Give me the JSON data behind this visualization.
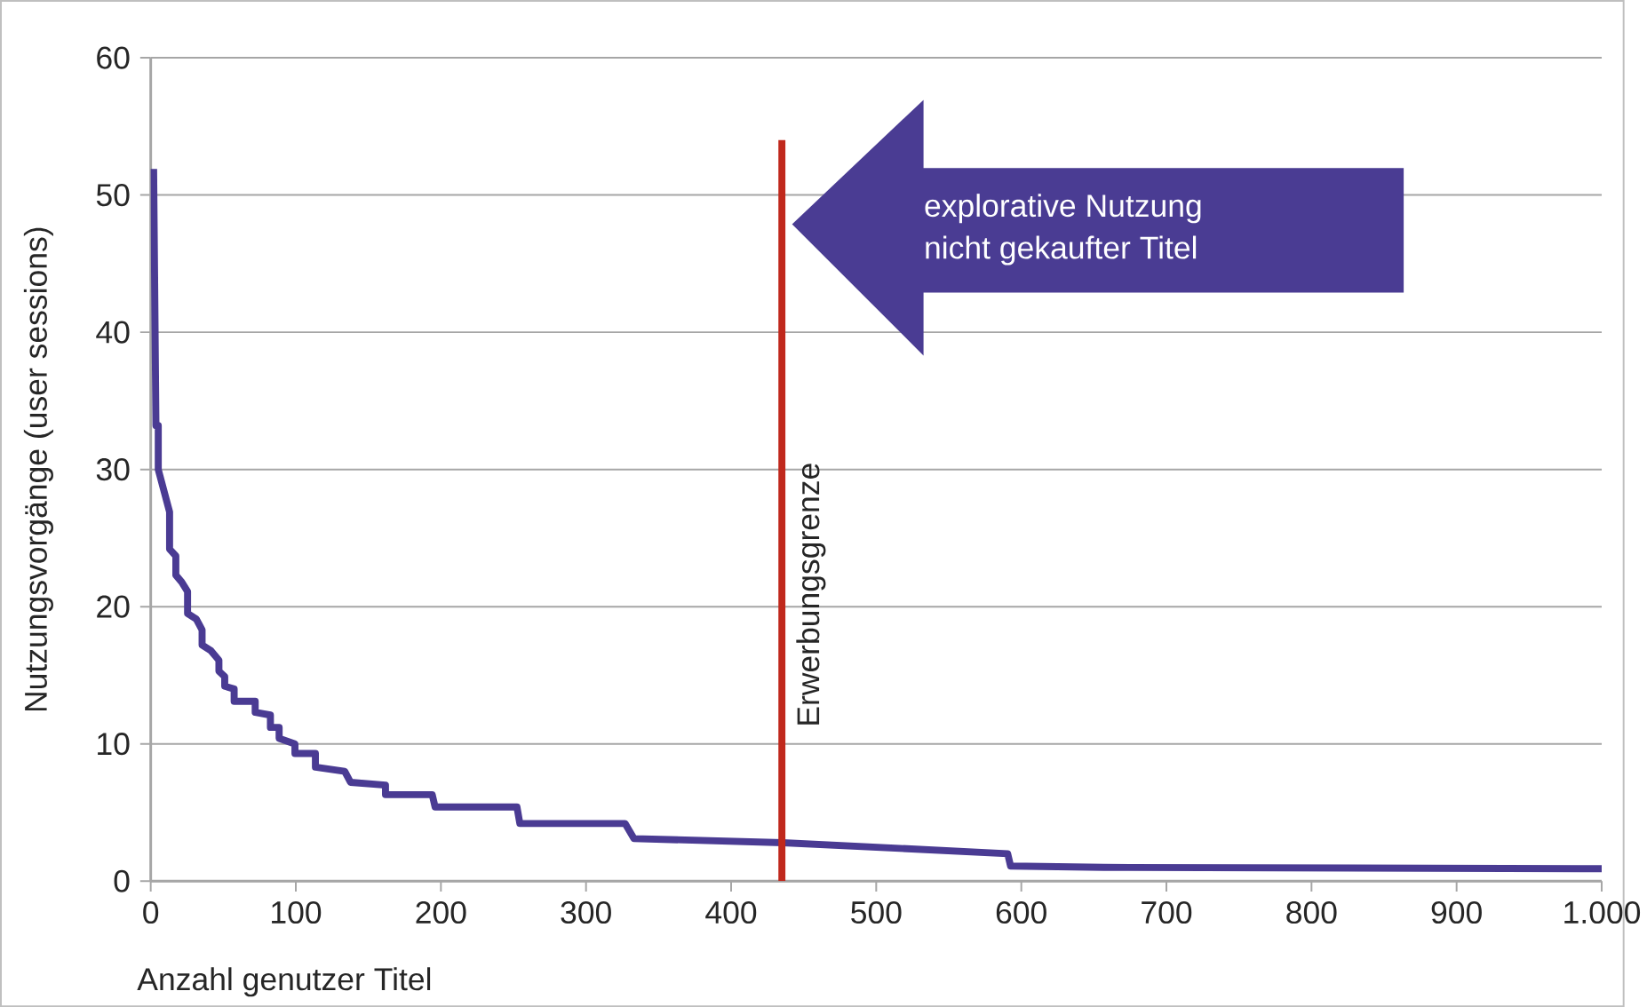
{
  "chart_data": {
    "type": "line",
    "xlabel": "Anzahl genutzer Titel",
    "ylabel": "Nutzungsvorgänge (user sessions)",
    "xlim": [
      0,
      1000
    ],
    "ylim": [
      0,
      60
    ],
    "xticks": [
      0,
      100,
      200,
      300,
      400,
      500,
      600,
      700,
      800,
      900,
      {
        "value": 1000,
        "label": "1.000"
      }
    ],
    "yticks": [
      0,
      10,
      20,
      30,
      40,
      50,
      60
    ],
    "grid": "y",
    "marker": "none",
    "line_style": "solid",
    "series": [
      {
        "color": "#4a3b93",
        "x": [
          2,
          3.6,
          5.2,
          5.2,
          13,
          13,
          17.3,
          17.3,
          21.3,
          25.4,
          25.4,
          31.4,
          35.4,
          35.4,
          41.4,
          47,
          47,
          51,
          51,
          57.5,
          57.5,
          72,
          72,
          82.5,
          82.5,
          88.5,
          88.5,
          99.4,
          99.4,
          113.5,
          113.5,
          133.7,
          137.7,
          161.8,
          161.8,
          194,
          196,
          252.4,
          254.4,
          326.9,
          333,
          435.6,
          590.6,
          592.6,
          657,
          1000
        ],
        "values": [
          51.9,
          33.2,
          33.2,
          30,
          26.9,
          24.2,
          23.7,
          22.3,
          21.8,
          21.1,
          19.5,
          19.1,
          18.3,
          17.2,
          16.8,
          16.1,
          15.3,
          14.9,
          14.2,
          14,
          13.1,
          13.1,
          12.3,
          12.1,
          11.2,
          11.2,
          10.4,
          10,
          9.3,
          9.3,
          8.3,
          8,
          7.2,
          7,
          6.3,
          6.3,
          5.4,
          5.4,
          4.2,
          4.2,
          3.1,
          2.8,
          2,
          1.1,
          1,
          0.9
        ]
      }
    ],
    "ref_lines": [
      {
        "axis": "x",
        "value": 435,
        "label": "Erwerbungsgrenze",
        "color": "#c0281c",
        "line_style": "solid"
      }
    ],
    "annotations": [
      "explorative Nutzung\nnicht gekaufter Titel"
    ]
  }
}
